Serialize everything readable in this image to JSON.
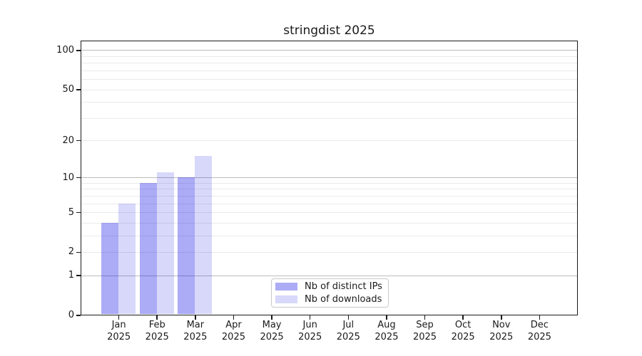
{
  "chart_data": {
    "type": "bar",
    "title": "stringdist 2025",
    "year_label": "2025",
    "categories": [
      "Jan",
      "Feb",
      "Mar",
      "Apr",
      "May",
      "Jun",
      "Jul",
      "Aug",
      "Sep",
      "Oct",
      "Nov",
      "Dec"
    ],
    "series": [
      {
        "name": "Nb of distinct IPs",
        "color": "rgba(10,10,230,0.34)",
        "values": [
          4,
          9,
          10,
          0,
          0,
          0,
          0,
          0,
          0,
          0,
          0,
          0
        ]
      },
      {
        "name": "Nb of downloads",
        "color": "rgba(10,10,230,0.16)",
        "values": [
          6,
          11,
          15,
          0,
          0,
          0,
          0,
          0,
          0,
          0,
          0,
          0
        ]
      }
    ],
    "xlabel": "",
    "ylabel": "",
    "yscale": "log1p",
    "ylim": [
      0,
      119
    ],
    "yticks": [
      0,
      1,
      2,
      5,
      10,
      20,
      50,
      100
    ],
    "grid": {
      "major_values": [
        1,
        10,
        100
      ],
      "minor_values": [
        2,
        3,
        4,
        5,
        6,
        7,
        8,
        9,
        20,
        30,
        40,
        50,
        60,
        70,
        80,
        90
      ]
    },
    "legend_position": "lower center",
    "colors": {
      "major_grid": "#bcbcbc",
      "minor_grid": "#eaeaea",
      "spine": "#1a1a1a",
      "text": "#1a1a1a",
      "legend_border": "#c9c9c9"
    }
  }
}
